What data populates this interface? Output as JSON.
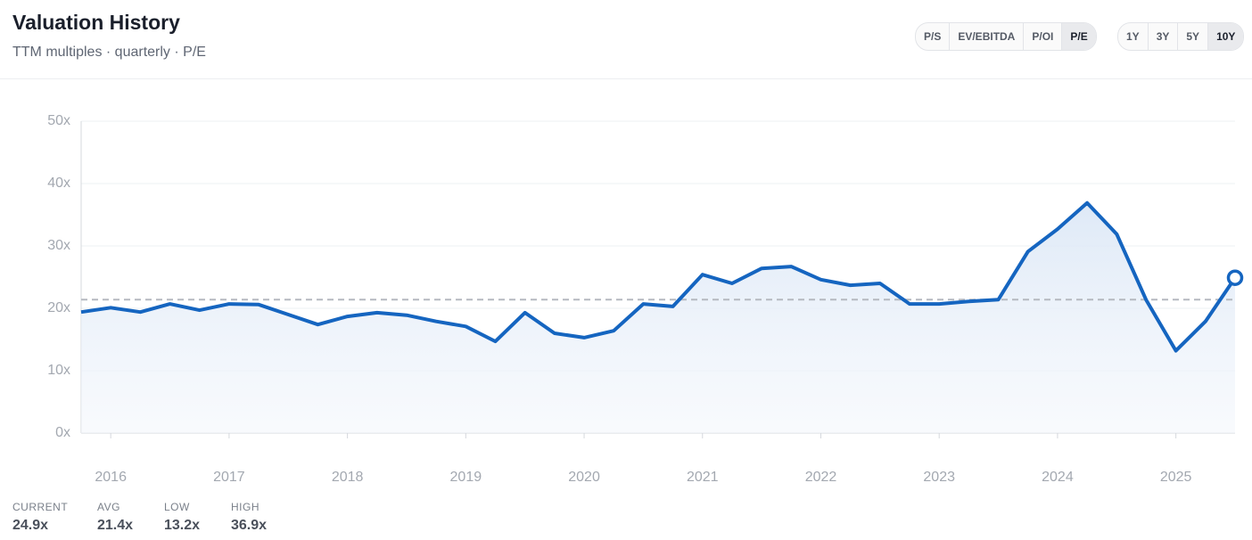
{
  "header": {
    "title": "Valuation History",
    "subtitle": "TTM multiples · quarterly · P/E"
  },
  "controls": {
    "metrics": {
      "items": [
        "P/S",
        "EV/EBITDA",
        "P/OI",
        "P/E"
      ],
      "active_index": 3
    },
    "ranges": {
      "items": [
        "1Y",
        "3Y",
        "5Y",
        "10Y"
      ],
      "active_index": 3
    }
  },
  "chart_data": {
    "type": "area-line",
    "x": [
      2015.75,
      2016,
      2016.25,
      2016.5,
      2016.75,
      2017,
      2017.25,
      2017.5,
      2017.75,
      2018,
      2018.25,
      2018.5,
      2018.75,
      2019,
      2019.25,
      2019.5,
      2019.75,
      2020,
      2020.25,
      2020.5,
      2020.75,
      2021,
      2021.25,
      2021.5,
      2021.75,
      2022,
      2022.25,
      2022.5,
      2022.75,
      2023,
      2023.25,
      2023.5,
      2023.75,
      2024,
      2024.25,
      2024.5,
      2024.75,
      2025,
      2025.25,
      2025.5
    ],
    "values": [
      19.4,
      20.1,
      19.4,
      20.7,
      19.7,
      20.7,
      20.6,
      19.0,
      17.4,
      18.7,
      19.3,
      18.9,
      17.9,
      17.1,
      14.7,
      19.3,
      16.0,
      15.3,
      16.4,
      20.7,
      20.3,
      25.4,
      24.0,
      26.4,
      26.7,
      24.6,
      23.7,
      24.0,
      20.7,
      20.7,
      21.1,
      21.4,
      29.1,
      32.7,
      36.9,
      31.9,
      21.3,
      13.2,
      17.9,
      24.9
    ],
    "color": "#1565c0",
    "xlim": [
      2015.75,
      2025.5
    ],
    "xticks": [
      2016,
      2017,
      2018,
      2019,
      2020,
      2021,
      2022,
      2023,
      2024,
      2025
    ],
    "ylim": [
      0,
      50
    ],
    "yticks": [
      {
        "value": 0,
        "label": "0x"
      },
      {
        "value": 10,
        "label": "10x"
      },
      {
        "value": 20,
        "label": "20x"
      },
      {
        "value": 30,
        "label": "30x"
      },
      {
        "value": 40,
        "label": "40x"
      },
      {
        "value": 50,
        "label": "50x"
      }
    ],
    "grid": true,
    "reference_line": 21.4
  },
  "summary": [
    {
      "label": "CURRENT",
      "value": "24.9x"
    },
    {
      "label": "AVG",
      "value": "21.4x"
    },
    {
      "label": "LOW",
      "value": "13.2x"
    },
    {
      "label": "HIGH",
      "value": "36.9x"
    }
  ]
}
